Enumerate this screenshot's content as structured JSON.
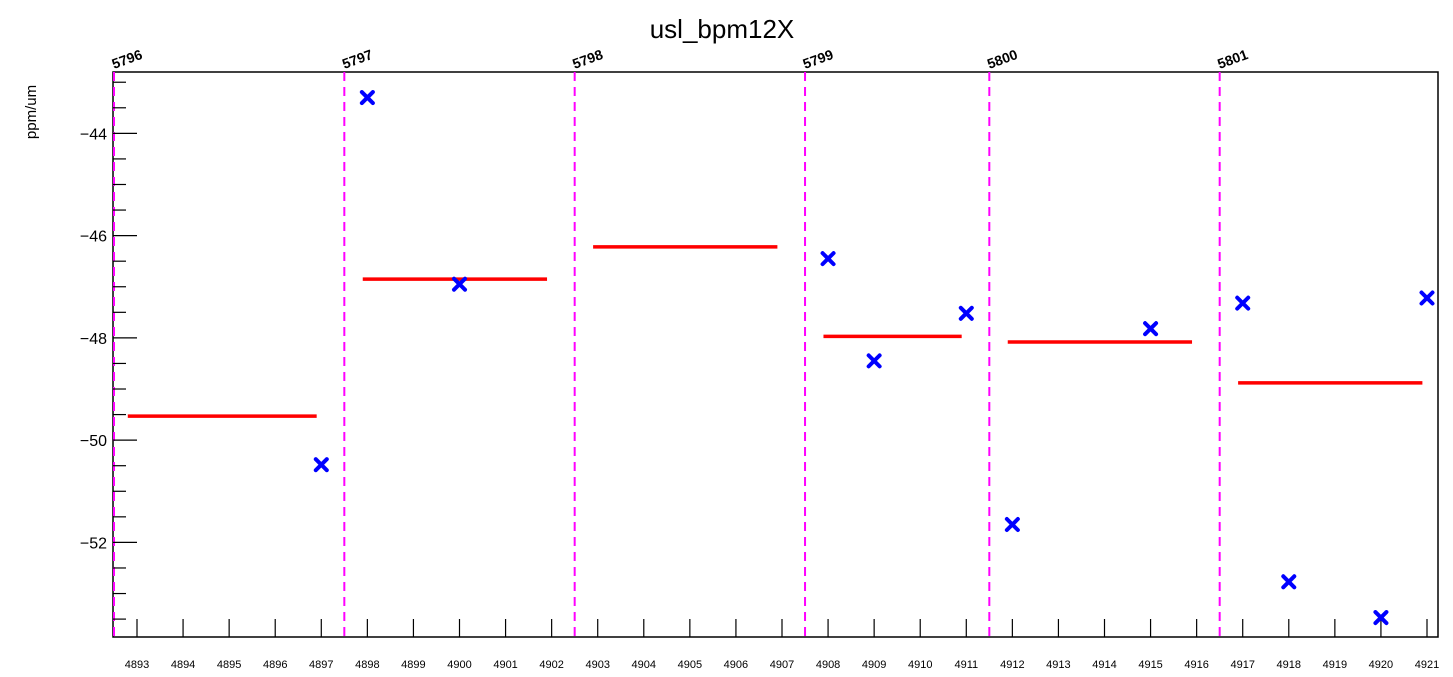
{
  "chart_data": {
    "type": "scatter",
    "title": "usl_bpm12X",
    "xlabel": "",
    "ylabel": "ppm/um",
    "xlim": [
      4892.5,
      4921
    ],
    "ylim": [
      -53.85,
      -42.8
    ],
    "x_ticks": [
      4893,
      4894,
      4895,
      4896,
      4897,
      4898,
      4899,
      4900,
      4901,
      4902,
      4903,
      4904,
      4905,
      4906,
      4907,
      4908,
      4909,
      4910,
      4911,
      4912,
      4913,
      4914,
      4915,
      4916,
      4917,
      4918,
      4919,
      4920,
      4921
    ],
    "x_tick_labels": [
      "4893",
      "4894",
      "4895",
      "4896",
      "4897",
      "4898",
      "4899",
      "4900",
      "4901",
      "4902",
      "4903",
      "4904",
      "4905",
      "4906",
      "4907",
      "4908",
      "4909",
      "4910",
      "4911",
      "4912",
      "4913",
      "4914",
      "4915",
      "4916",
      "4917",
      "4918",
      "4919",
      "4920",
      "4921"
    ],
    "y_ticks": [
      -44,
      -46,
      -48,
      -50,
      -52
    ],
    "y_tick_labels": [
      "−44",
      "−46",
      "−48",
      "−50",
      "−52"
    ],
    "grid": false,
    "series": [
      {
        "marker": "x",
        "color": "#0000ff",
        "x": [
          4897,
          4898,
          4900,
          4908,
          4909,
          4911,
          4912,
          4915,
          4917,
          4918,
          4920,
          4921
        ],
        "y": [
          -50.48,
          -43.3,
          -46.95,
          -46.45,
          -48.45,
          -47.52,
          -51.65,
          -47.82,
          -47.32,
          -52.77,
          -53.47,
          -47.22
        ]
      }
    ],
    "averages": {
      "color": "#ff0000",
      "segments": [
        {
          "x0": 4892.8,
          "x1": 4896.9,
          "y": -49.53
        },
        {
          "x0": 4897.9,
          "x1": 4901.9,
          "y": -46.85
        },
        {
          "x0": 4902.9,
          "x1": 4906.9,
          "y": -46.22
        },
        {
          "x0": 4907.9,
          "x1": 4910.9,
          "y": -47.97
        },
        {
          "x0": 4911.9,
          "x1": 4915.9,
          "y": -48.08
        },
        {
          "x0": 4916.9,
          "x1": 4920.9,
          "y": -48.88
        }
      ]
    },
    "run_boundaries": {
      "color": "#ff00ff",
      "lines": [
        {
          "x": 4892.5,
          "label": "5796"
        },
        {
          "x": 4897.5,
          "label": "5797"
        },
        {
          "x": 4902.5,
          "label": "5798"
        },
        {
          "x": 4907.5,
          "label": "5799"
        },
        {
          "x": 4911.5,
          "label": "5800"
        },
        {
          "x": 4916.5,
          "label": "5801"
        }
      ]
    }
  }
}
